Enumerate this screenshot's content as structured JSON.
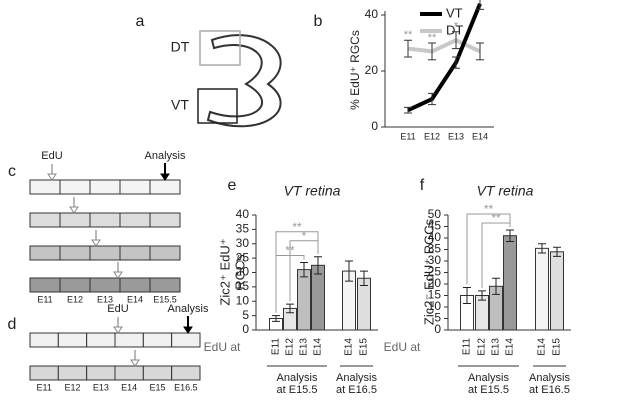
{
  "panel_labels": [
    "a",
    "b",
    "c",
    "d",
    "e",
    "f"
  ],
  "diagram_a": {
    "labels": [
      "DT",
      "VT"
    ]
  },
  "diagram_c": {
    "pulse_label": "EdU",
    "analysis_label": "Analysis",
    "stages": [
      "E11",
      "E12",
      "E13",
      "E14",
      "E15.5"
    ]
  },
  "diagram_d": {
    "pulse_label": "EdU",
    "analysis_label": "Analysis",
    "stages": [
      "E11",
      "E12",
      "E13",
      "E14",
      "E15",
      "E16.5"
    ]
  },
  "chart_data": [
    {
      "type": "line",
      "ylabel": "% EdU⁺ RGCs",
      "categories": [
        "E11",
        "E12",
        "E13",
        "E14"
      ],
      "ylim": [
        0,
        45
      ],
      "yticks": [
        0,
        20,
        40
      ],
      "series": [
        {
          "name": "VT",
          "color": "#000000",
          "values": [
            6,
            10,
            23,
            44
          ],
          "errors": [
            1,
            2,
            2,
            2
          ]
        },
        {
          "name": "DT",
          "color": "#c8c8c8",
          "values": [
            28,
            27,
            31,
            27
          ],
          "errors": [
            3,
            3,
            3,
            3
          ]
        }
      ],
      "significance": [
        "**",
        "**",
        "*",
        "**"
      ]
    },
    {
      "type": "bar",
      "title": "VT retina",
      "ylabel": [
        "Zic2⁺ EdU⁺",
        "RGCs"
      ],
      "xlabel": "EdU at",
      "categories": [
        "E11",
        "E12",
        "E13",
        "E14",
        "E14",
        "E15"
      ],
      "values": [
        4,
        7.5,
        21,
        22.5,
        20.5,
        18
      ],
      "errors": [
        1,
        1.5,
        2.5,
        3,
        3.5,
        2.5
      ],
      "colors": [
        "#ffffff",
        "#e6e6e6",
        "#bfbfbf",
        "#999999",
        "#f4f4f4",
        "#dedede"
      ],
      "ylim": [
        0,
        40
      ],
      "yticks": [
        0,
        5,
        10,
        15,
        20,
        25,
        30,
        35,
        40
      ],
      "groups": [
        [
          "Analysis",
          "at E15.5"
        ],
        [
          "Analysis",
          "at E16.5"
        ]
      ],
      "significance": [
        "**",
        "*",
        "**"
      ]
    },
    {
      "type": "bar",
      "title": "VT retina",
      "ylabel": [
        "Zic2⁻ EdU⁺ RGCs"
      ],
      "xlabel": "EdU at",
      "categories": [
        "E11",
        "E12",
        "E13",
        "E14",
        "E14",
        "E15"
      ],
      "values": [
        15,
        15,
        19,
        41,
        35.5,
        34
      ],
      "errors": [
        3.5,
        2,
        3.5,
        2.5,
        2,
        2
      ],
      "colors": [
        "#ffffff",
        "#e6e6e6",
        "#bfbfbf",
        "#999999",
        "#f4f4f4",
        "#dedede"
      ],
      "ylim": [
        0,
        50
      ],
      "yticks": [
        0,
        5,
        10,
        15,
        20,
        25,
        30,
        35,
        40,
        45,
        50
      ],
      "groups": [
        [
          "Analysis",
          "at E15.5"
        ],
        [
          "Analysis",
          "at E16.5"
        ]
      ],
      "significance": [
        "**",
        "**"
      ]
    }
  ]
}
